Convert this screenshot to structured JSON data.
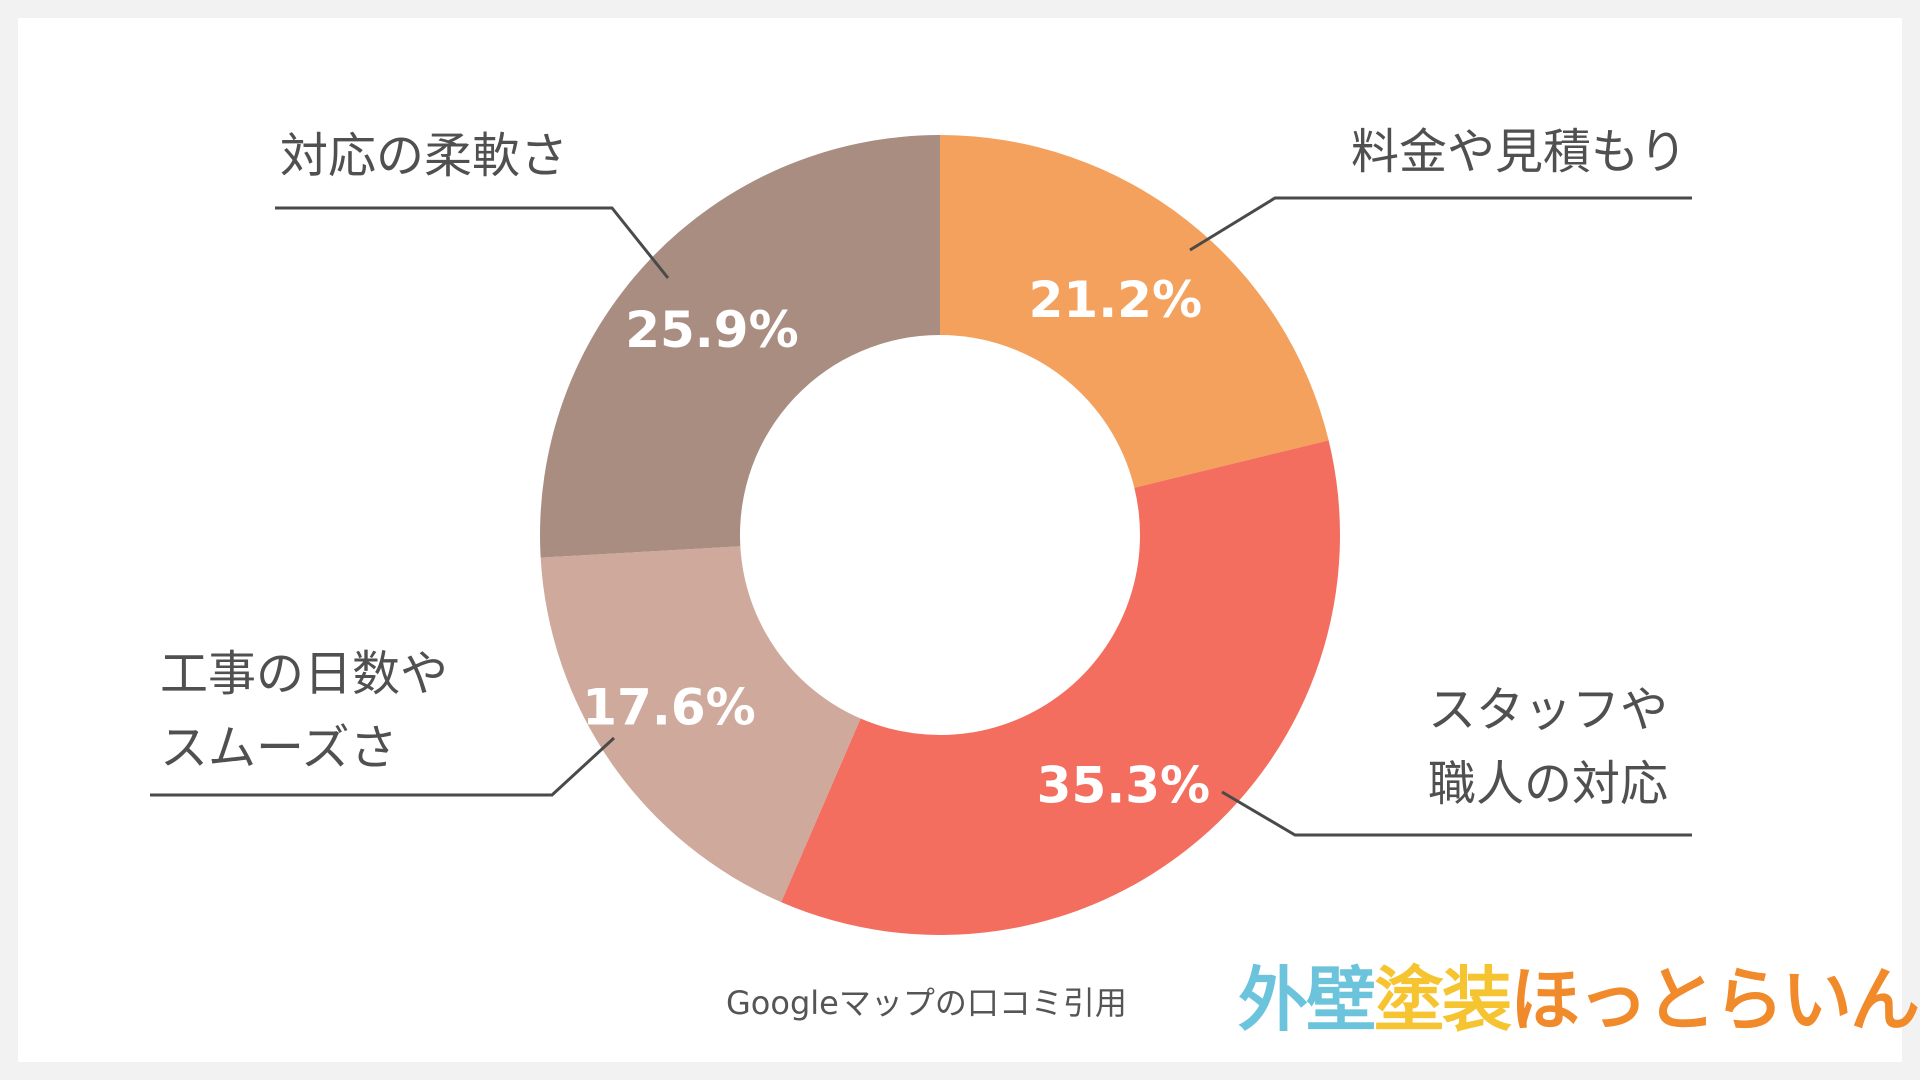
{
  "chart_data": {
    "type": "pie",
    "variant": "donut",
    "source_note": "Googleマップの口コミ引用",
    "slices": [
      {
        "label_lines": [
          "料金や見積もり"
        ],
        "value": 21.2,
        "display": "21.2%",
        "color": "#f4a15d"
      },
      {
        "label_lines": [
          "スタッフや",
          "職人の対応"
        ],
        "value": 35.3,
        "display": "35.3%",
        "color": "#f36e5f"
      },
      {
        "label_lines": [
          "工事の日数や",
          "スムーズさ"
        ],
        "value": 17.6,
        "display": "17.6%",
        "color": "#cfa99b"
      },
      {
        "label_lines": [
          "対応の柔軟さ"
        ],
        "value": 25.9,
        "display": "25.9%",
        "color": "#a98d81"
      }
    ]
  },
  "logo": {
    "parts": [
      {
        "text": "外壁",
        "color": "#6cc3dc"
      },
      {
        "text": "塗装",
        "color": "#f5c430"
      },
      {
        "text": "ほっとらいん",
        "color": "#f08a2a"
      }
    ]
  }
}
